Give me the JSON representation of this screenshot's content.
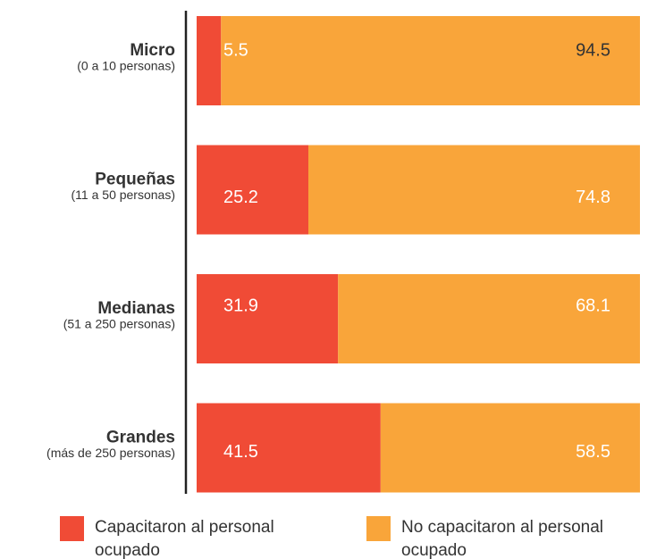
{
  "chart_data": {
    "type": "stacked-bar-horizontal",
    "categories": [
      "Micro",
      "Pequeñas",
      "Medianas",
      "Grandes"
    ],
    "category_notes": [
      "(0 a 10 personas)",
      "(11 a 50 personas)",
      "(51 a 250 personas)",
      "(más de 250 personas)"
    ],
    "series": [
      {
        "name": "Capacitaron al personal ocupado",
        "color": "#f04b36",
        "values": [
          5.5,
          25.2,
          31.9,
          41.5
        ]
      },
      {
        "name": "No capacitaron al personal ocupado",
        "color": "#f9a53a",
        "values": [
          94.5,
          74.8,
          68.1,
          58.5
        ]
      }
    ]
  }
}
